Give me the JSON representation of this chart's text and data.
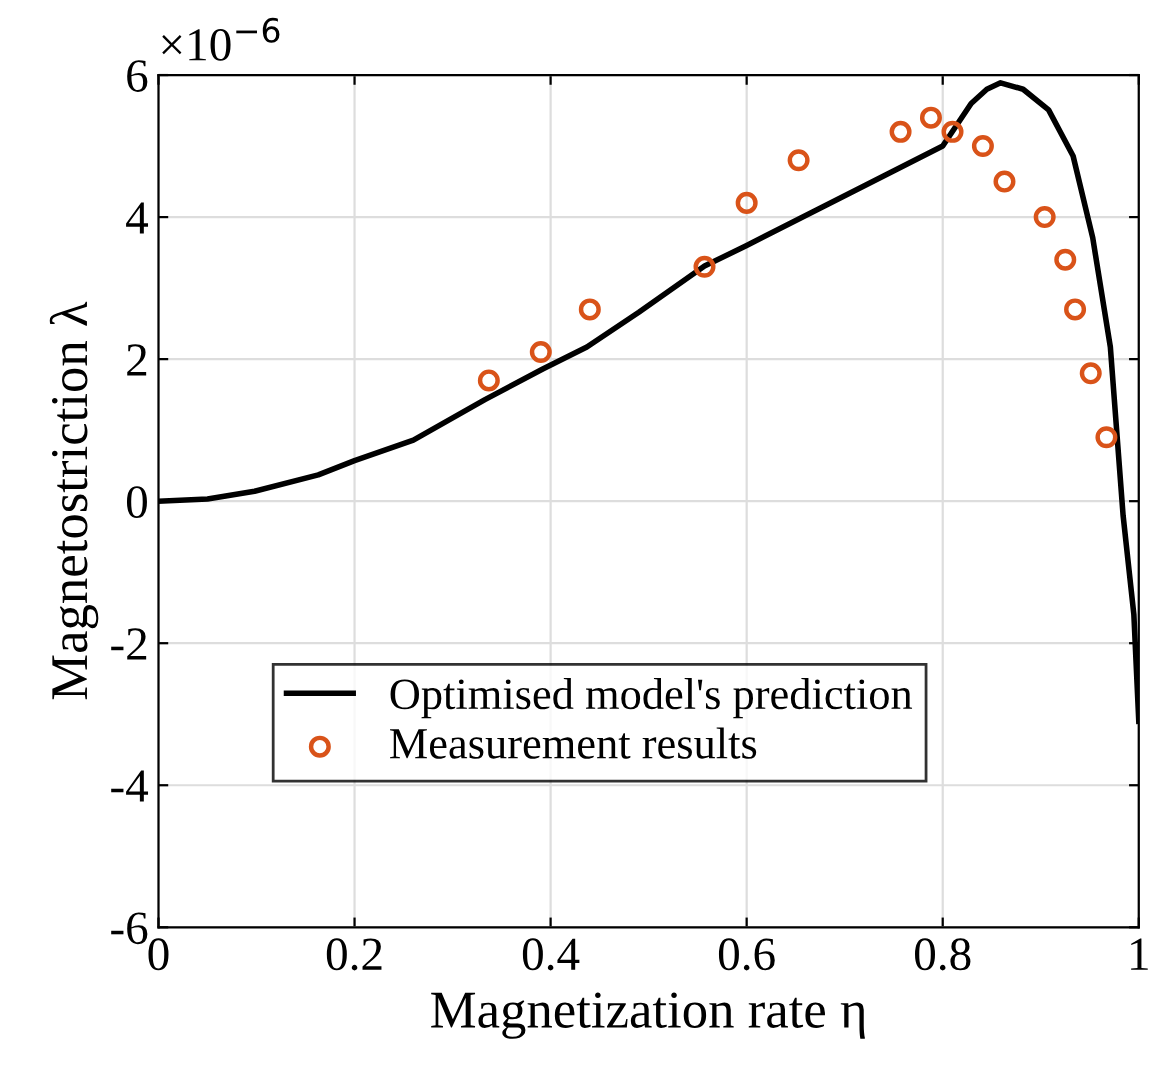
{
  "chart_data": {
    "type": "line",
    "xlabel": "Magnetization rate η",
    "ylabel": "Magnetostriction λ",
    "annotations": [
      "×10$^{−6}$"
    ],
    "series": [
      {
        "name": "Optimised model's prediction",
        "color": "#000000",
        "marker": "none",
        "line_style": "solid",
        "x": [
          0,
          0.05,
          0.098,
          0.163,
          0.2,
          0.26,
          0.333,
          0.392,
          0.437,
          0.49,
          0.557,
          0.6,
          0.7,
          0.8,
          0.829,
          0.845,
          0.859,
          0.882,
          0.908,
          0.933,
          0.953,
          0.971,
          0.984,
          0.995,
          1.0
        ],
        "values": [
          0,
          0.03,
          0.14,
          0.37,
          0.57,
          0.86,
          1.43,
          1.86,
          2.17,
          2.66,
          3.31,
          3.6,
          4.3,
          5.0,
          5.6,
          5.8,
          5.89,
          5.8,
          5.51,
          4.86,
          3.71,
          2.17,
          -0.2,
          -1.6,
          -3.1
        ]
      },
      {
        "name": "Measurement results",
        "type": "scatter",
        "color": "#d95319",
        "marker": "circle",
        "x": [
          0.337,
          0.39,
          0.44,
          0.557,
          0.6,
          0.653,
          0.757,
          0.788,
          0.81,
          0.841,
          0.863,
          0.904,
          0.925,
          0.935,
          0.951,
          0.967
        ],
        "values": [
          1.7,
          2.1,
          2.7,
          3.3,
          4.2,
          4.8,
          5.2,
          5.4,
          5.2,
          5.0,
          4.5,
          4.0,
          3.4,
          2.7,
          1.8,
          0.9
        ]
      }
    ],
    "xlim": [
      0,
      1
    ],
    "xticks": [
      0,
      0.2,
      0.4,
      0.6,
      0.8,
      1
    ],
    "ylim": [
      -6,
      6
    ],
    "yticks": [
      -6,
      -4,
      -2,
      0,
      2,
      4,
      6
    ],
    "grid": true,
    "legend": "bottom"
  }
}
